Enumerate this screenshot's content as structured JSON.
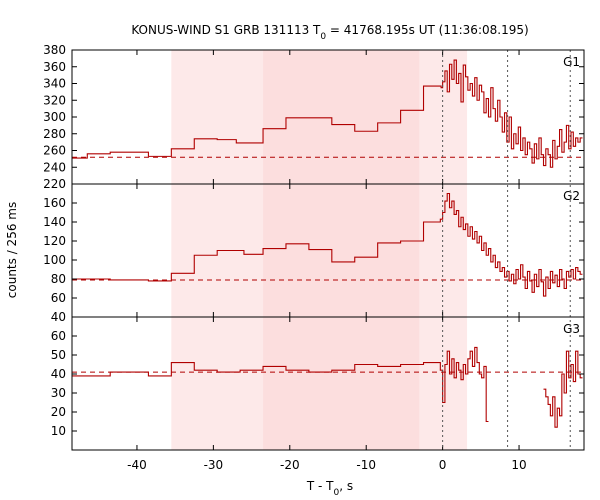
{
  "chart_data": {
    "type": "line",
    "title_main": "KONUS-WIND S1 GRB 131113 T",
    "title_sub": "0",
    "title_rest": " = 41768.195s UT (11:36:08.195)",
    "xlabel_main": "T - T",
    "xlabel_sub": "0",
    "xlabel_rest": ", s",
    "ylabel": "counts / 256 ms",
    "xlim": [
      -48.5,
      18.5
    ],
    "xticks": [
      -40,
      -30,
      -20,
      -10,
      0,
      10
    ],
    "shaded_regions": [
      {
        "x0": -35.5,
        "x1": -23.5,
        "color": "#fde9e9"
      },
      {
        "x0": -23.5,
        "x1": -3.0,
        "color": "#fcdede"
      },
      {
        "x0": -3.0,
        "x1": 3.2,
        "color": "#fde9e9"
      }
    ],
    "vertical_lines": [
      0,
      8.5,
      16.7
    ],
    "panels": [
      {
        "name": "G1",
        "ylim": [
          220,
          380
        ],
        "yticks": [
          220,
          240,
          260,
          280,
          300,
          320,
          340,
          360,
          380
        ],
        "background": 252,
        "series": [
          [
            -48.5,
            251
          ],
          [
            -46.5,
            256
          ],
          [
            -43.5,
            258
          ],
          [
            -38.5,
            253
          ],
          [
            -35.5,
            262
          ],
          [
            -32.5,
            274
          ],
          [
            -29.5,
            273
          ],
          [
            -27,
            269
          ],
          [
            -23.5,
            286
          ],
          [
            -20.5,
            299
          ],
          [
            -14.5,
            291
          ],
          [
            -11.5,
            283
          ],
          [
            -8.5,
            293
          ],
          [
            -5.5,
            308
          ],
          [
            -2.5,
            337
          ],
          [
            -0.2,
            335
          ],
          [
            0,
            342
          ],
          [
            0.3,
            355
          ],
          [
            0.6,
            330
          ],
          [
            0.9,
            363
          ],
          [
            1.2,
            345
          ],
          [
            1.5,
            368
          ],
          [
            1.8,
            340
          ],
          [
            2.1,
            352
          ],
          [
            2.4,
            318
          ],
          [
            2.7,
            362
          ],
          [
            3.0,
            348
          ],
          [
            3.3,
            332
          ],
          [
            3.6,
            340
          ],
          [
            3.9,
            325
          ],
          [
            4.2,
            347
          ],
          [
            4.5,
            320
          ],
          [
            4.8,
            338
          ],
          [
            5.1,
            330
          ],
          [
            5.4,
            305
          ],
          [
            5.7,
            322
          ],
          [
            6.0,
            300
          ],
          [
            6.3,
            335
          ],
          [
            6.6,
            310
          ],
          [
            6.9,
            295
          ],
          [
            7.2,
            320
          ],
          [
            7.5,
            300
          ],
          [
            7.8,
            282
          ],
          [
            8.1,
            305
          ],
          [
            8.4,
            270
          ],
          [
            8.7,
            300
          ],
          [
            9.0,
            262
          ],
          [
            9.3,
            280
          ],
          [
            9.6,
            268
          ],
          [
            9.9,
            288
          ],
          [
            10.2,
            260
          ],
          [
            10.5,
            275
          ],
          [
            10.8,
            255
          ],
          [
            11.1,
            270
          ],
          [
            11.4,
            262
          ],
          [
            11.7,
            245
          ],
          [
            12.0,
            268
          ],
          [
            12.3,
            250
          ],
          [
            12.6,
            275
          ],
          [
            12.9,
            255
          ],
          [
            13.2,
            242
          ],
          [
            13.5,
            262
          ],
          [
            13.8,
            255
          ],
          [
            14.1,
            240
          ],
          [
            14.4,
            272
          ],
          [
            14.7,
            250
          ],
          [
            15.0,
            265
          ],
          [
            15.3,
            285
          ],
          [
            15.6,
            258
          ],
          [
            15.9,
            270
          ],
          [
            16.2,
            290
          ],
          [
            16.5,
            262
          ],
          [
            16.8,
            282
          ],
          [
            17.1,
            265
          ],
          [
            17.4,
            275
          ],
          [
            17.7,
            270
          ],
          [
            18.0,
            275
          ]
        ]
      },
      {
        "name": "G2",
        "ylim": [
          40,
          180
        ],
        "yticks": [
          40,
          60,
          80,
          100,
          120,
          140,
          160
        ],
        "background": 79,
        "series": [
          [
            -48.5,
            80
          ],
          [
            -43.5,
            79
          ],
          [
            -38.5,
            78
          ],
          [
            -35.5,
            86
          ],
          [
            -32.5,
            105
          ],
          [
            -29.5,
            110
          ],
          [
            -26,
            106
          ],
          [
            -23.5,
            112
          ],
          [
            -20.5,
            117
          ],
          [
            -17.5,
            111
          ],
          [
            -14.5,
            98
          ],
          [
            -11.5,
            103
          ],
          [
            -8.5,
            118
          ],
          [
            -5.5,
            120
          ],
          [
            -2.5,
            140
          ],
          [
            -0.3,
            143
          ],
          [
            0,
            150
          ],
          [
            0.3,
            162
          ],
          [
            0.6,
            170
          ],
          [
            0.9,
            155
          ],
          [
            1.2,
            162
          ],
          [
            1.5,
            148
          ],
          [
            1.8,
            152
          ],
          [
            2.1,
            135
          ],
          [
            2.4,
            145
          ],
          [
            2.7,
            132
          ],
          [
            3.0,
            138
          ],
          [
            3.3,
            125
          ],
          [
            3.6,
            135
          ],
          [
            3.9,
            122
          ],
          [
            4.2,
            130
          ],
          [
            4.5,
            118
          ],
          [
            4.8,
            125
          ],
          [
            5.1,
            110
          ],
          [
            5.4,
            118
          ],
          [
            5.7,
            105
          ],
          [
            6.0,
            112
          ],
          [
            6.3,
            98
          ],
          [
            6.6,
            105
          ],
          [
            6.9,
            92
          ],
          [
            7.2,
            98
          ],
          [
            7.5,
            88
          ],
          [
            7.8,
            92
          ],
          [
            8.1,
            82
          ],
          [
            8.4,
            88
          ],
          [
            8.7,
            78
          ],
          [
            9.0,
            85
          ],
          [
            9.3,
            75
          ],
          [
            9.6,
            90
          ],
          [
            9.9,
            80
          ],
          [
            10.2,
            95
          ],
          [
            10.5,
            82
          ],
          [
            10.8,
            70
          ],
          [
            11.1,
            88
          ],
          [
            11.4,
            78
          ],
          [
            11.7,
            66
          ],
          [
            12.0,
            85
          ],
          [
            12.3,
            72
          ],
          [
            12.6,
            90
          ],
          [
            12.9,
            77
          ],
          [
            13.2,
            62
          ],
          [
            13.5,
            82
          ],
          [
            13.8,
            70
          ],
          [
            14.1,
            88
          ],
          [
            14.4,
            76
          ],
          [
            14.7,
            84
          ],
          [
            15.0,
            72
          ],
          [
            15.3,
            90
          ],
          [
            15.6,
            80
          ],
          [
            15.9,
            70
          ],
          [
            16.2,
            88
          ],
          [
            16.5,
            82
          ],
          [
            16.8,
            90
          ],
          [
            17.1,
            80
          ],
          [
            17.4,
            92
          ],
          [
            17.7,
            88
          ],
          [
            18.0,
            85
          ]
        ]
      },
      {
        "name": "G3",
        "ylim": [
          0,
          70
        ],
        "yticks": [
          10,
          20,
          30,
          40,
          50,
          60
        ],
        "background": 41,
        "series": [
          [
            -48.5,
            39
          ],
          [
            -43.5,
            41
          ],
          [
            -38.5,
            39
          ],
          [
            -35.5,
            46
          ],
          [
            -32.5,
            42
          ],
          [
            -29.5,
            41
          ],
          [
            -26.5,
            42
          ],
          [
            -23.5,
            44
          ],
          [
            -20.5,
            42
          ],
          [
            -17.5,
            41
          ],
          [
            -14.5,
            42
          ],
          [
            -11.5,
            45
          ],
          [
            -8.5,
            44
          ],
          [
            -5.5,
            45
          ],
          [
            -2.5,
            46
          ],
          [
            -0.3,
            42
          ],
          [
            0,
            25
          ],
          [
            0.3,
            45
          ],
          [
            0.6,
            52
          ],
          [
            0.9,
            40
          ],
          [
            1.2,
            48
          ],
          [
            1.5,
            38
          ],
          [
            1.8,
            46
          ],
          [
            2.1,
            42
          ],
          [
            2.4,
            37
          ],
          [
            2.7,
            45
          ],
          [
            3.0,
            40
          ],
          [
            3.3,
            48
          ],
          [
            3.6,
            52
          ],
          [
            3.9,
            44
          ],
          [
            4.2,
            54
          ],
          [
            4.5,
            46
          ],
          [
            4.8,
            40
          ],
          [
            5.1,
            38
          ],
          [
            5.4,
            44
          ],
          [
            5.7,
            15
          ]
        ],
        "series_b": [
          [
            13.2,
            32
          ],
          [
            13.5,
            28
          ],
          [
            13.8,
            24
          ],
          [
            14.1,
            18
          ],
          [
            14.4,
            28
          ],
          [
            14.7,
            12
          ],
          [
            15.0,
            22
          ],
          [
            15.3,
            18
          ],
          [
            15.6,
            40
          ],
          [
            15.9,
            30
          ],
          [
            16.2,
            52
          ],
          [
            16.5,
            38
          ],
          [
            16.8,
            45
          ],
          [
            17.1,
            36
          ],
          [
            17.4,
            52
          ],
          [
            17.7,
            40
          ],
          [
            18.0,
            38
          ]
        ]
      }
    ]
  }
}
